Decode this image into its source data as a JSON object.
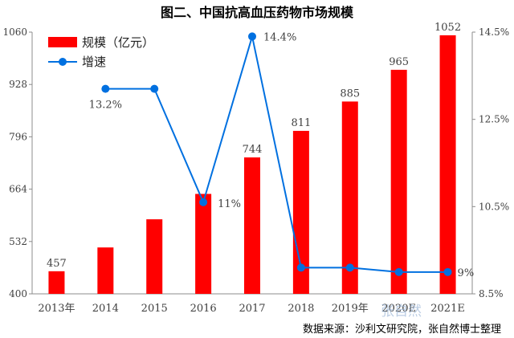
{
  "chart_data": {
    "type": "bar",
    "title": "图二、中国抗高血压药物市场规模",
    "categories": [
      "2013年",
      "2014",
      "2015",
      "2016",
      "2017",
      "2018",
      "2019年",
      "2020E",
      "2021E"
    ],
    "series": [
      {
        "name": "规模（亿元）",
        "type": "bar",
        "axis": "left",
        "color": "#ff0000",
        "values": [
          457,
          517,
          588,
          652,
          744,
          811,
          885,
          965,
          1052
        ],
        "data_labels": [
          "457",
          "",
          "",
          "",
          "744",
          "811",
          "885",
          "965",
          "1052"
        ]
      },
      {
        "name": "增速",
        "type": "line",
        "axis": "right",
        "color": "#0070e0",
        "values": [
          null,
          13.2,
          13.2,
          10.6,
          14.4,
          9.1,
          9.1,
          9.0,
          9.0
        ],
        "data_labels": [
          "",
          "13.2%",
          "",
          "11%",
          "14.4%",
          "",
          "",
          "",
          "9%"
        ]
      }
    ],
    "y_left": {
      "ylim": [
        400,
        1060
      ],
      "ticks": [
        "400",
        "532",
        "664",
        "796",
        "928",
        "1060"
      ]
    },
    "y_right": {
      "ylim": [
        8.5,
        14.5
      ],
      "ticks": [
        "8.5%",
        "10.5%",
        "12.5%",
        "14.5%"
      ]
    },
    "grid": false,
    "legend": "top-left"
  },
  "source_note": "数据来源：沙利文研究院，张自然博士整理",
  "watermark": "张自然"
}
